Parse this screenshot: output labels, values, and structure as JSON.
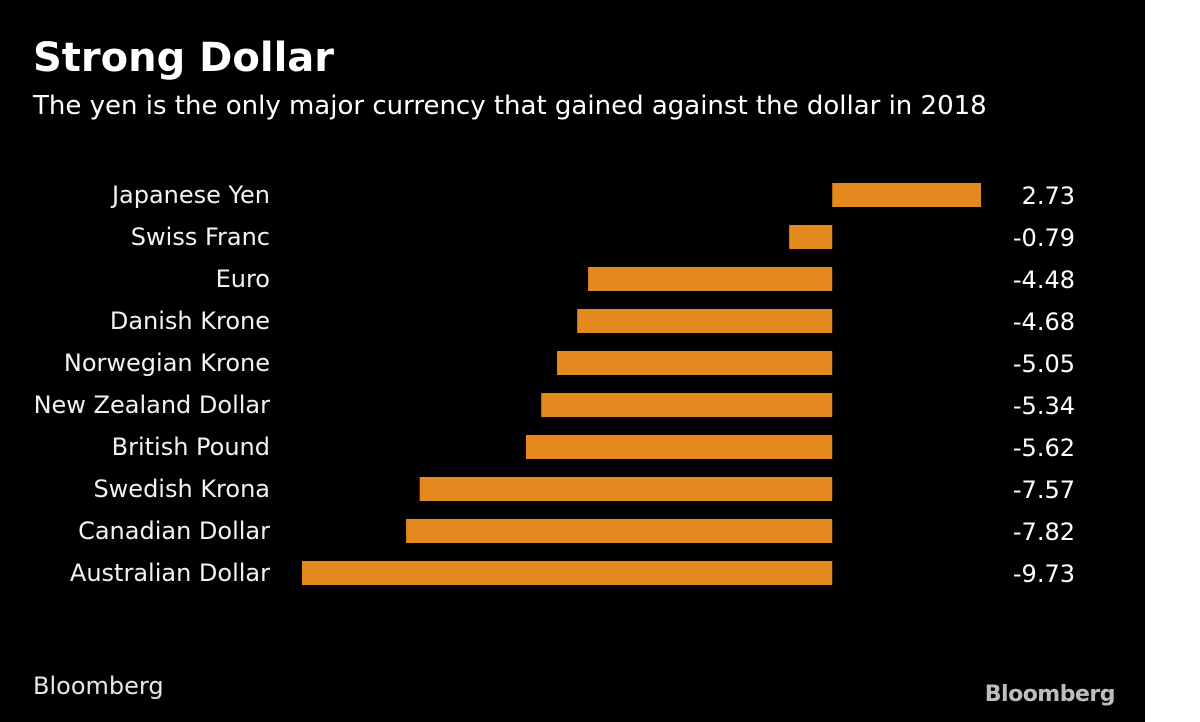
{
  "colors": {
    "background": "#000000",
    "bar": "#e5891f",
    "text": "#ffffff"
  },
  "chart_data": {
    "type": "bar",
    "orientation": "horizontal",
    "title": "Strong Dollar",
    "subtitle": "The yen is the only major currency that gained against the dollar in 2018",
    "categories": [
      "Japanese Yen",
      "Swiss Franc",
      "Euro",
      "Danish Krone",
      "Norwegian Krone",
      "New Zealand Dollar",
      "British Pound",
      "Swedish Krona",
      "Canadian Dollar",
      "Australian Dollar"
    ],
    "values": [
      2.73,
      -0.79,
      -4.48,
      -4.68,
      -5.05,
      -5.34,
      -5.62,
      -7.57,
      -7.82,
      -9.73
    ],
    "value_labels": [
      "2.73",
      "-0.79",
      "-4.48",
      "-4.68",
      "-5.05",
      "-5.34",
      "-5.62",
      "-7.57",
      "-7.82",
      "-9.73"
    ],
    "xlim": [
      -9.73,
      2.73
    ],
    "xlabel": "",
    "ylabel": "",
    "grid": false,
    "legend": "none"
  },
  "footer": {
    "source": "Bloomberg",
    "logo": "Bloomberg"
  }
}
